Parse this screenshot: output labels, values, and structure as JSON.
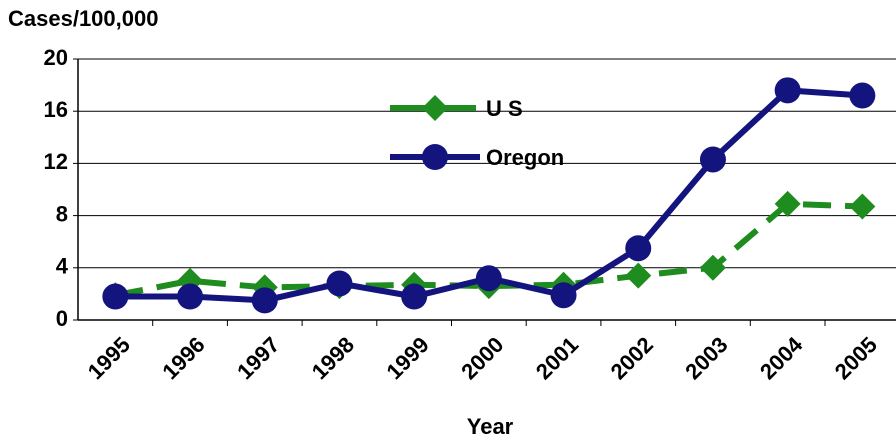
{
  "chart_data": {
    "type": "line",
    "y_label": "Cases/100,000",
    "x_label": "Year",
    "categories": [
      "1995",
      "1996",
      "1997",
      "1998",
      "1999",
      "2000",
      "2001",
      "2002",
      "2003",
      "2004",
      "2005"
    ],
    "series": [
      {
        "name": "U S",
        "color": "#1f8c1f",
        "dashed": true,
        "marker": "diamond",
        "values": [
          1.9,
          3.0,
          2.5,
          2.6,
          2.7,
          2.6,
          2.7,
          3.4,
          4.0,
          8.9,
          8.7
        ]
      },
      {
        "name": "Oregon",
        "color": "#14147f",
        "dashed": false,
        "marker": "circle",
        "values": [
          1.8,
          1.8,
          1.5,
          2.8,
          1.8,
          3.2,
          1.9,
          5.5,
          12.3,
          17.6,
          17.2
        ]
      }
    ],
    "ylim": [
      0,
      20
    ],
    "yticks": [
      0,
      4,
      8,
      12,
      16,
      20
    ],
    "grid": true,
    "legend": "inside-top"
  }
}
